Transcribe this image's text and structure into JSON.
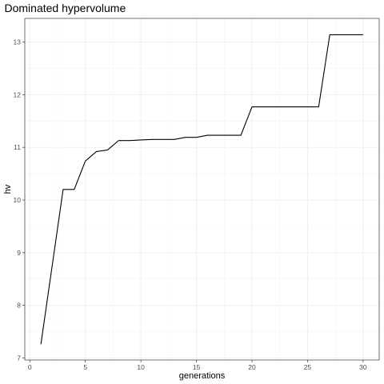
{
  "chart_data": {
    "type": "line",
    "title": "Dominated hypervolume",
    "xlabel": "generations",
    "ylabel": "hv",
    "xlim": [
      -0.45,
      31.45
    ],
    "ylim": [
      6.96,
      13.45
    ],
    "x_ticks": [
      0,
      5,
      10,
      15,
      20,
      25,
      30
    ],
    "x_tick_labels": [
      "0",
      "5",
      "10",
      "15",
      "20",
      "25",
      "30"
    ],
    "y_ticks": [
      7,
      8,
      9,
      10,
      11,
      12,
      13
    ],
    "y_tick_labels": [
      "7",
      "8",
      "9",
      "10",
      "11",
      "12",
      "13"
    ],
    "grid": true,
    "legend": "none",
    "line_color": "#000000",
    "series": [
      {
        "x": [
          1,
          2,
          3,
          4,
          5,
          6,
          7,
          8,
          9,
          10,
          11,
          12,
          13,
          14,
          15,
          16,
          17,
          18,
          19,
          20,
          21,
          22,
          23,
          24,
          25,
          26,
          27,
          28,
          29,
          30
        ],
        "y": [
          7.26,
          8.73,
          10.2,
          10.2,
          10.74,
          10.92,
          10.95,
          11.13,
          11.13,
          11.14,
          11.15,
          11.15,
          11.15,
          11.19,
          11.19,
          11.23,
          11.23,
          11.23,
          11.23,
          11.77,
          11.77,
          11.77,
          11.77,
          11.77,
          11.77,
          11.77,
          13.14,
          13.14,
          13.14,
          13.14
        ]
      }
    ]
  }
}
